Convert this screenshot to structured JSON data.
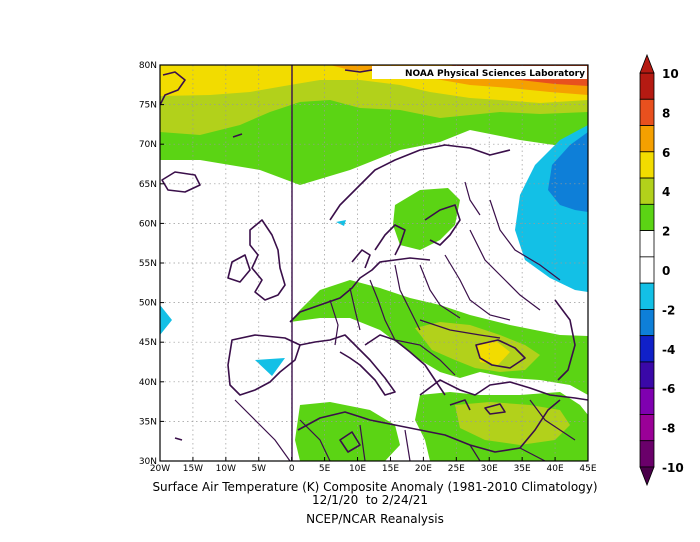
{
  "map": {
    "credit": "NOAA Physical Sciences Laboratory",
    "lon_ticks": [
      "20W",
      "15W",
      "10W",
      "5W",
      "0",
      "5E",
      "10E",
      "15E",
      "20E",
      "25E",
      "30E",
      "35E",
      "40E",
      "45E"
    ],
    "lat_ticks": [
      "80N",
      "75N",
      "70N",
      "65N",
      "60N",
      "55N",
      "50N",
      "45N",
      "40N",
      "35N",
      "30N"
    ],
    "lon_range": [
      -20,
      45
    ],
    "lat_range": [
      30,
      80
    ],
    "projection": "cylindrical equidistant",
    "grid": "dotted gray"
  },
  "colorbar": {
    "ticks": [
      "10",
      "8",
      "6",
      "4",
      "2",
      "0",
      "-2",
      "-4",
      "-6",
      "-8",
      "-10"
    ],
    "colors": [
      "#b51a12",
      "#e8501e",
      "#f5a000",
      "#f2dc00",
      "#b2d11b",
      "#5bd414",
      "#ffffff",
      "#ffffff",
      "#13c0e6",
      "#0e7fd8",
      "#1020c8",
      "#3a08a8",
      "#7f00b0",
      "#9a0097",
      "#6a006a"
    ]
  },
  "caption": {
    "title": "Surface Air Temperature (K) Composite Anomaly (1981-2010 Climatology)",
    "dates": "12/1/20  to 2/24/21",
    "source": "NCEP/NCAR Reanalysis"
  }
}
